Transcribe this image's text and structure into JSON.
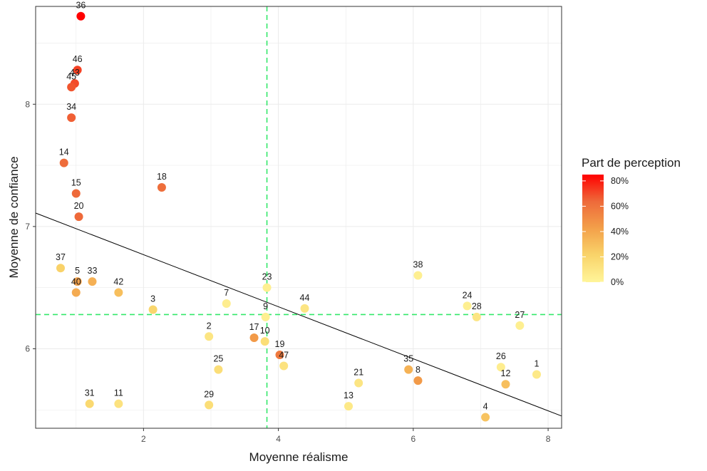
{
  "chart_data": {
    "type": "scatter",
    "xlabel": "Moyenne réalisme",
    "ylabel": "Moyenne de confiance",
    "xlim": [
      0.4,
      8.2
    ],
    "ylim": [
      5.35,
      8.8
    ],
    "x_ticks": [
      2,
      4,
      6,
      8
    ],
    "y_ticks": [
      6,
      7,
      8
    ],
    "grid": true,
    "points": [
      {
        "label": "36",
        "x": 1.07,
        "y": 8.72,
        "share": 0.85
      },
      {
        "label": "46",
        "x": 1.02,
        "y": 8.28,
        "share": 0.72
      },
      {
        "label": "43",
        "x": 0.98,
        "y": 8.17,
        "share": 0.7
      },
      {
        "label": "45",
        "x": 0.93,
        "y": 8.14,
        "share": 0.68
      },
      {
        "label": "34",
        "x": 0.93,
        "y": 7.89,
        "share": 0.66
      },
      {
        "label": "14",
        "x": 0.82,
        "y": 7.52,
        "share": 0.63
      },
      {
        "label": "18",
        "x": 2.27,
        "y": 7.32,
        "share": 0.62
      },
      {
        "label": "15",
        "x": 1.0,
        "y": 7.27,
        "share": 0.64
      },
      {
        "label": "20",
        "x": 1.04,
        "y": 7.08,
        "share": 0.64
      },
      {
        "label": "37",
        "x": 0.77,
        "y": 6.66,
        "share": 0.22
      },
      {
        "label": "38",
        "x": 6.07,
        "y": 6.6,
        "share": 0.04
      },
      {
        "label": "5",
        "x": 1.02,
        "y": 6.55,
        "share": 0.42
      },
      {
        "label": "33",
        "x": 1.24,
        "y": 6.55,
        "share": 0.36
      },
      {
        "label": "23",
        "x": 3.83,
        "y": 6.5,
        "share": 0.04
      },
      {
        "label": "40",
        "x": 1.0,
        "y": 6.46,
        "share": 0.38
      },
      {
        "label": "42",
        "x": 1.63,
        "y": 6.46,
        "share": 0.3
      },
      {
        "label": "7",
        "x": 3.23,
        "y": 6.37,
        "share": 0.05
      },
      {
        "label": "24",
        "x": 6.8,
        "y": 6.35,
        "share": 0.04
      },
      {
        "label": "44",
        "x": 4.39,
        "y": 6.33,
        "share": 0.1
      },
      {
        "label": "3",
        "x": 2.14,
        "y": 6.32,
        "share": 0.2
      },
      {
        "label": "9",
        "x": 3.81,
        "y": 6.26,
        "share": 0.04
      },
      {
        "label": "28",
        "x": 6.94,
        "y": 6.26,
        "share": 0.1
      },
      {
        "label": "27",
        "x": 7.58,
        "y": 6.19,
        "share": 0.04
      },
      {
        "label": "2",
        "x": 2.97,
        "y": 6.1,
        "share": 0.1
      },
      {
        "label": "17",
        "x": 3.64,
        "y": 6.09,
        "share": 0.45
      },
      {
        "label": "10",
        "x": 3.8,
        "y": 6.06,
        "share": 0.15
      },
      {
        "label": "19",
        "x": 4.02,
        "y": 5.95,
        "share": 0.58
      },
      {
        "label": "47",
        "x": 4.08,
        "y": 5.86,
        "share": 0.12
      },
      {
        "label": "35",
        "x": 5.93,
        "y": 5.83,
        "share": 0.35
      },
      {
        "label": "26",
        "x": 7.3,
        "y": 5.85,
        "share": 0.05
      },
      {
        "label": "25",
        "x": 3.11,
        "y": 5.83,
        "share": 0.15
      },
      {
        "label": "1",
        "x": 7.83,
        "y": 5.79,
        "share": 0.08
      },
      {
        "label": "8",
        "x": 6.07,
        "y": 5.74,
        "share": 0.45
      },
      {
        "label": "21",
        "x": 5.19,
        "y": 5.72,
        "share": 0.1
      },
      {
        "label": "12",
        "x": 7.37,
        "y": 5.71,
        "share": 0.3
      },
      {
        "label": "31",
        "x": 1.2,
        "y": 5.55,
        "share": 0.18
      },
      {
        "label": "11",
        "x": 1.63,
        "y": 5.55,
        "share": 0.12
      },
      {
        "label": "29",
        "x": 2.97,
        "y": 5.54,
        "share": 0.15
      },
      {
        "label": "13",
        "x": 5.04,
        "y": 5.53,
        "share": 0.08
      },
      {
        "label": "4",
        "x": 7.07,
        "y": 5.44,
        "share": 0.28
      }
    ],
    "regression_line": {
      "x": [
        0.4,
        8.2
      ],
      "y": [
        7.11,
        5.45
      ],
      "color": "#000000"
    },
    "reference_lines": {
      "x": 3.83,
      "y": 6.28,
      "color": "#33e86a",
      "style": "dashed"
    },
    "legend": {
      "title": "Part de perception",
      "placement": "right",
      "labels": [
        "80%",
        "60%",
        "40%",
        "20%",
        "0%"
      ],
      "values": [
        0.8,
        0.6,
        0.4,
        0.2,
        0.0
      ],
      "min": 0.0,
      "max": 0.85,
      "colors": [
        "#fff59a",
        "#f9d46a",
        "#f3a04a",
        "#ee6a3a",
        "#ff0000"
      ]
    }
  }
}
